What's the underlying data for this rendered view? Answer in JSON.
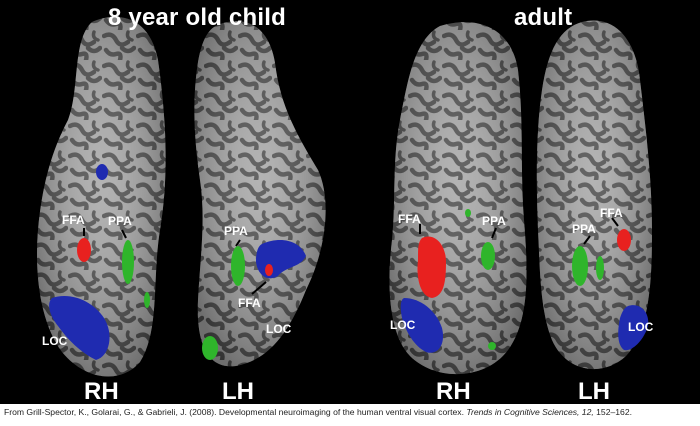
{
  "panels": {
    "child": {
      "title": "8 year old child",
      "hemispheres": {
        "right": "RH",
        "left": "LH"
      },
      "right_labels": {
        "ffa": "FFA",
        "ppa": "PPA",
        "loc": "LOC"
      },
      "left_labels": {
        "ppa": "PPA",
        "ffa": "FFA",
        "loc": "LOC"
      }
    },
    "adult": {
      "title": "adult",
      "hemispheres": {
        "right": "RH",
        "left": "LH"
      },
      "right_labels": {
        "ffa": "FFA",
        "ppa": "PPA",
        "loc": "LOC"
      },
      "left_labels": {
        "ffa": "FFA",
        "ppa": "PPA",
        "loc": "LOC"
      }
    }
  },
  "colors": {
    "background": "#000000",
    "cortex_light": "#a9a9a9",
    "cortex_dark": "#4e4e4e",
    "ffa": "#e8211f",
    "ppa": "#2fb52b",
    "loc": "#1f2bb0"
  },
  "caption": {
    "prefix": "From Grill-Spector, K., Golarai, G., & Gabrieli, J. (2008). Developmental neuroimaging of the human ventral visual cortex. ",
    "journal": "Trends in Cognitive Sciences, 12,",
    "suffix": " 152–162."
  }
}
